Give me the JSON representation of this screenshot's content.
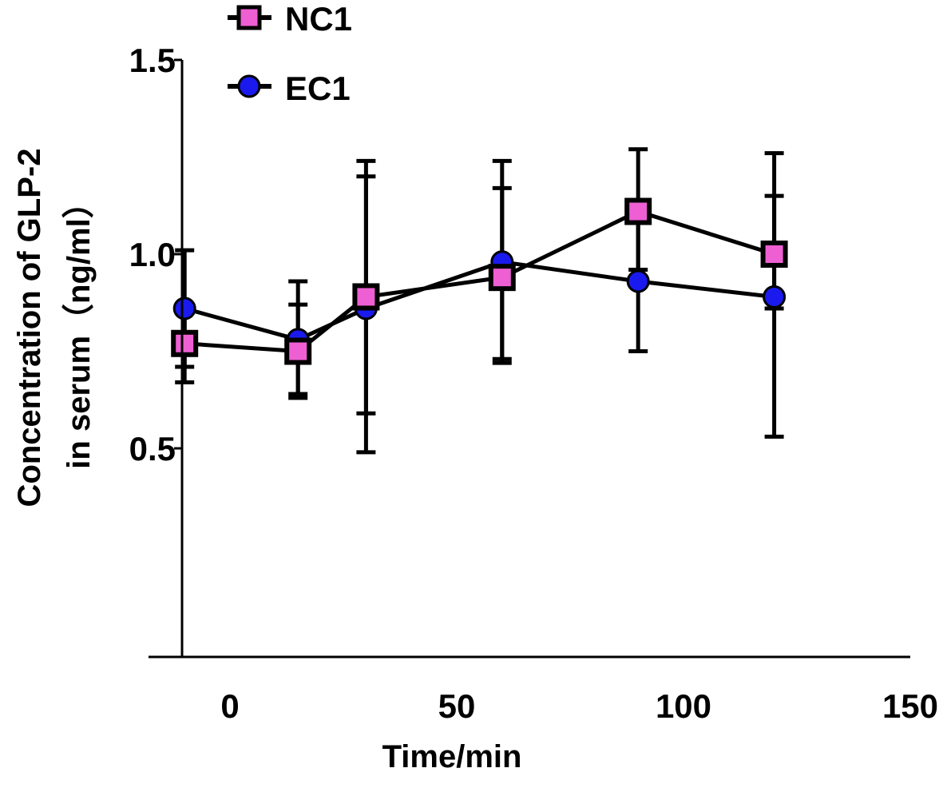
{
  "chart_data": {
    "type": "line",
    "title": "",
    "xlabel": "Time/min",
    "ylabel_line1": "Concentration of GLP-2",
    "ylabel_line2": "in serum（ng/ml）",
    "xlim": [
      -10,
      150
    ],
    "ylim": [
      0,
      1.5
    ],
    "xticks": [
      0,
      50,
      100,
      150
    ],
    "xtick_labels": [
      "0",
      "50",
      "100",
      "150"
    ],
    "yticks": [
      0.5,
      1.0,
      1.5
    ],
    "ytick_labels": [
      "0.5",
      "1.0",
      "1.5"
    ],
    "legend_position": "top-left",
    "series": [
      {
        "name": "NC1",
        "marker": "square",
        "color": "#ee5fd3",
        "x": [
          -10,
          15,
          30,
          60,
          90,
          120
        ],
        "y": [
          0.77,
          0.75,
          0.89,
          0.94,
          1.11,
          1.0
        ],
        "err_low": [
          0.67,
          0.63,
          0.49,
          0.73,
          0.96,
          0.53
        ],
        "err_high": [
          0.87,
          0.87,
          1.24,
          1.17,
          1.27,
          1.26
        ]
      },
      {
        "name": "EC1",
        "marker": "circle",
        "color": "#1a1aee",
        "x": [
          -10,
          15,
          30,
          60,
          90,
          120
        ],
        "y": [
          0.86,
          0.78,
          0.86,
          0.98,
          0.93,
          0.89
        ],
        "err_low": [
          0.71,
          0.64,
          0.59,
          0.72,
          0.75,
          0.86
        ],
        "err_high": [
          1.01,
          0.93,
          1.2,
          1.24,
          1.1,
          1.15
        ]
      }
    ]
  }
}
